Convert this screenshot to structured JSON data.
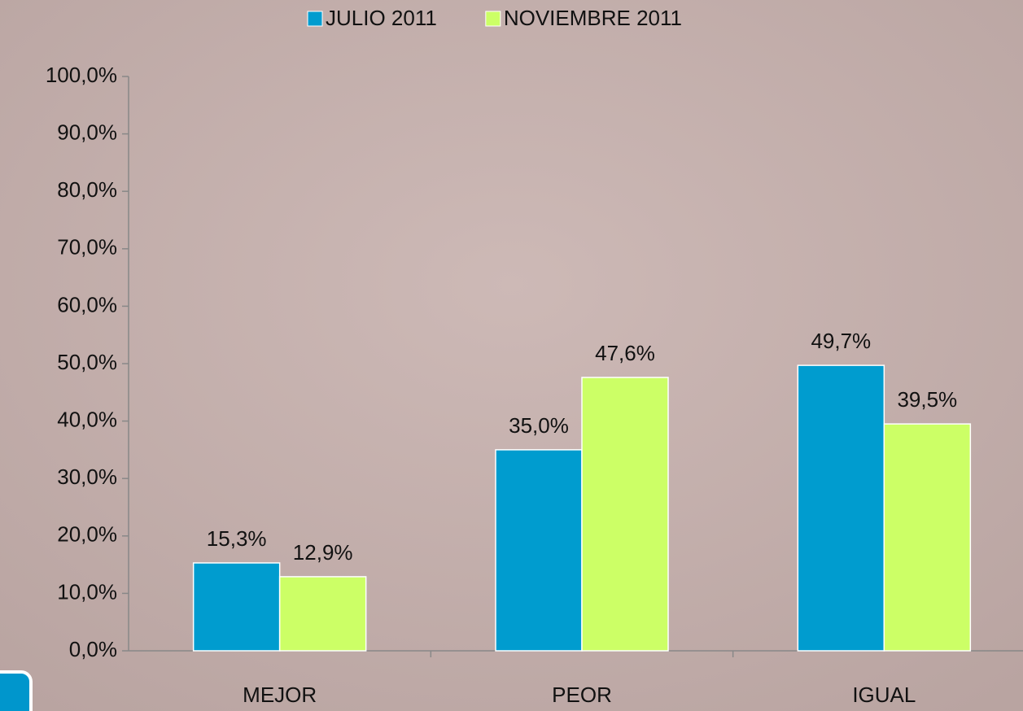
{
  "chart_data": {
    "type": "bar",
    "categories": [
      "MEJOR",
      "PEOR",
      "IGUAL"
    ],
    "series": [
      {
        "name": "JULIO 2011",
        "color": "#009ccf",
        "values": [
          15.3,
          35.0,
          49.7
        ],
        "value_labels": [
          "15,3%",
          "35,0%",
          "49,7%"
        ]
      },
      {
        "name": "NOVIEMBRE 2011",
        "color": "#ccff66",
        "values": [
          12.9,
          47.6,
          39.5
        ],
        "value_labels": [
          "12,9%",
          "47,6%",
          "39,5%"
        ]
      }
    ],
    "ylim": [
      0,
      100
    ],
    "yticks": [
      {
        "value": 0,
        "label": "0,0%"
      },
      {
        "value": 10,
        "label": "10,0%"
      },
      {
        "value": 20,
        "label": "20,0%"
      },
      {
        "value": 30,
        "label": "30,0%"
      },
      {
        "value": 40,
        "label": "40,0%"
      },
      {
        "value": 50,
        "label": "50,0%"
      },
      {
        "value": 60,
        "label": "60,0%"
      },
      {
        "value": 70,
        "label": "70,0%"
      },
      {
        "value": 80,
        "label": "80,0%"
      },
      {
        "value": 90,
        "label": "90,0%"
      },
      {
        "value": 100,
        "label": "100,0%"
      }
    ],
    "legend": "top"
  }
}
